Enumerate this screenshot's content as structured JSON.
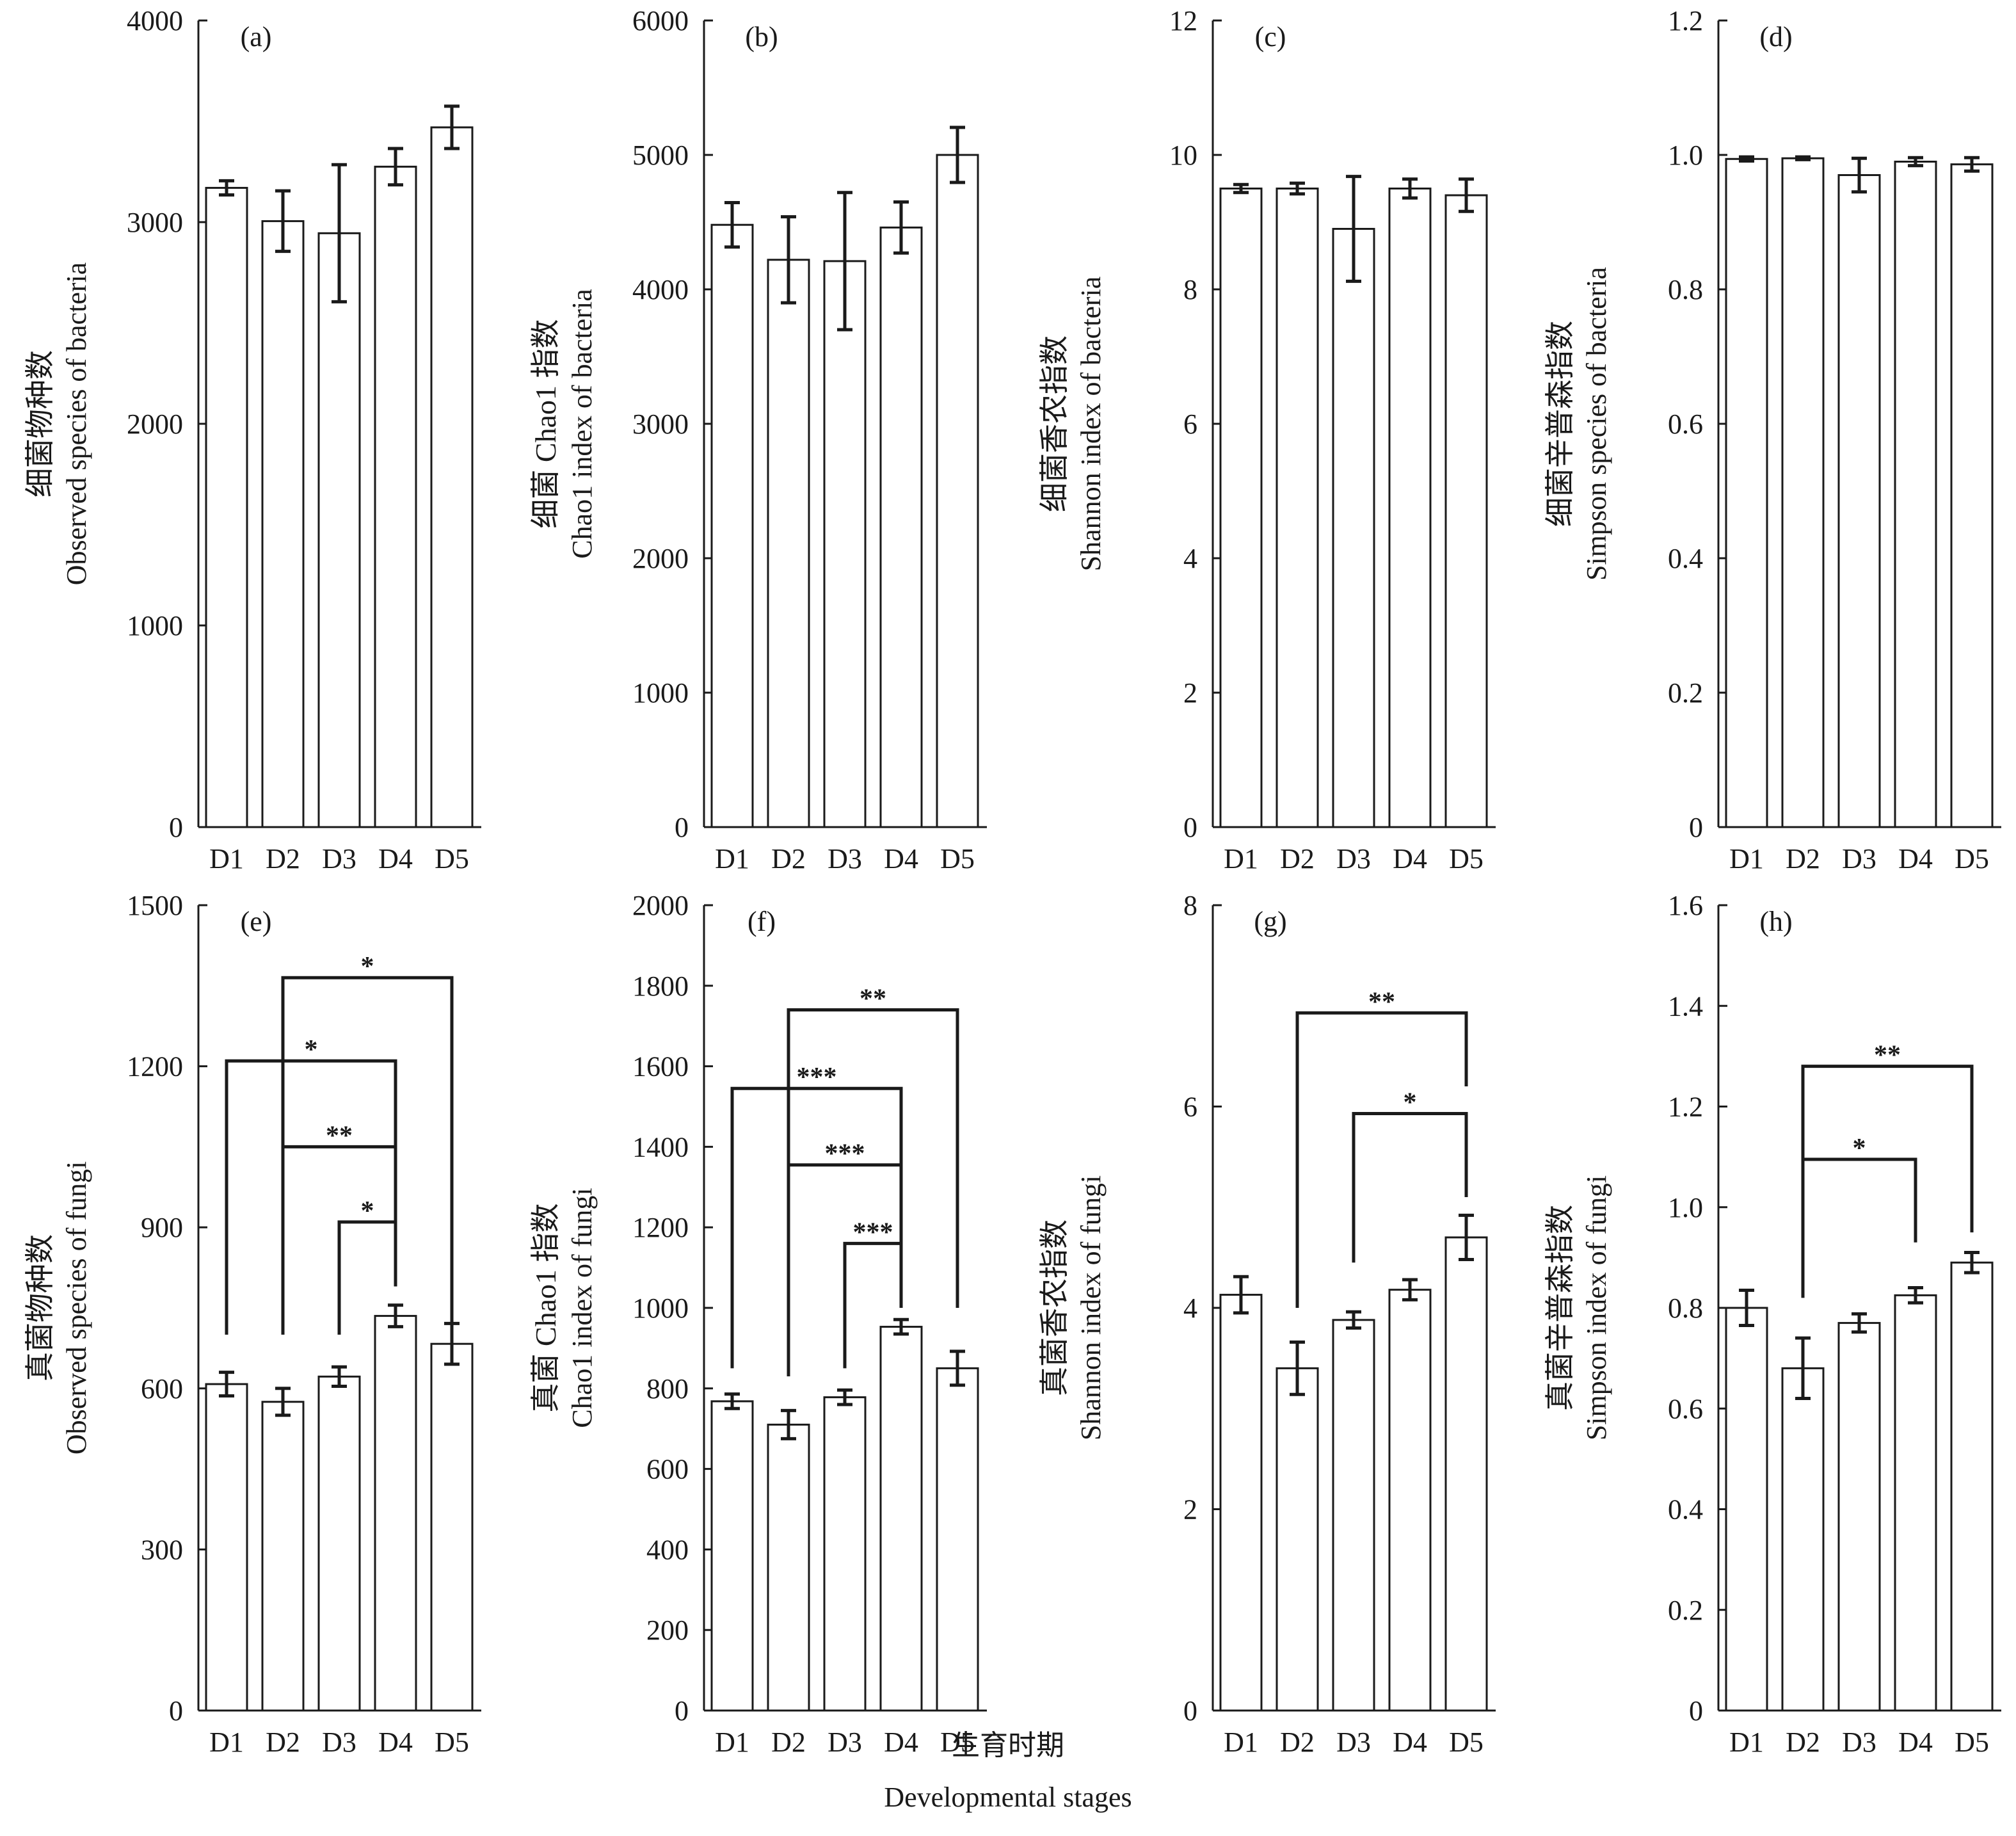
{
  "x_axis_title": {
    "cn": "生育时期",
    "en": "Developmental stages"
  },
  "chart_data": [
    {
      "type": "bar",
      "panel_label": "(a)",
      "ylabel_cn": "细菌物种数",
      "ylabel_en": "Observed species of bacteria",
      "categories": [
        "D1",
        "D2",
        "D3",
        "D4",
        "D5"
      ],
      "values": [
        3170,
        3005,
        2945,
        3275,
        3470
      ],
      "errors": [
        35,
        150,
        340,
        90,
        105
      ],
      "ylim": [
        0,
        4000
      ],
      "yticks": [
        "0",
        "1000",
        "2000",
        "3000",
        "4000"
      ],
      "significance": []
    },
    {
      "type": "bar",
      "panel_label": "(b)",
      "ylabel_cn": "细菌 Chao1 指数",
      "ylabel_en": "Chao1 index of bacteria",
      "categories": [
        "D1",
        "D2",
        "D3",
        "D4",
        "D5"
      ],
      "values": [
        4480,
        4220,
        4210,
        4460,
        5000
      ],
      "errors": [
        165,
        320,
        510,
        190,
        205
      ],
      "ylim": [
        0,
        6000
      ],
      "yticks": [
        "0",
        "1000",
        "2000",
        "3000",
        "4000",
        "5000",
        "6000"
      ],
      "significance": []
    },
    {
      "type": "bar",
      "panel_label": "(c)",
      "ylabel_cn": "细菌香农指数",
      "ylabel_en": "Shannon index of bacteria",
      "categories": [
        "D1",
        "D2",
        "D3",
        "D4",
        "D5"
      ],
      "values": [
        9.5,
        9.5,
        8.9,
        9.5,
        9.4
      ],
      "errors": [
        0.06,
        0.08,
        0.78,
        0.14,
        0.24
      ],
      "ylim": [
        0,
        12
      ],
      "yticks": [
        "0",
        "2",
        "4",
        "6",
        "8",
        "10",
        "12"
      ],
      "significance": []
    },
    {
      "type": "bar",
      "panel_label": "(d)",
      "ylabel_cn": "细菌辛普森指数",
      "ylabel_en": "Simpson species of bacteria",
      "categories": [
        "D1",
        "D2",
        "D3",
        "D4",
        "D5"
      ],
      "values": [
        0.994,
        0.995,
        0.97,
        0.99,
        0.986
      ],
      "errors": [
        0.003,
        0.002,
        0.025,
        0.006,
        0.01
      ],
      "ylim": [
        0,
        1.2
      ],
      "yticks": [
        "0",
        "0.2",
        "0.4",
        "0.6",
        "0.8",
        "1.0",
        "1.2"
      ],
      "significance": []
    },
    {
      "type": "bar",
      "panel_label": "(e)",
      "ylabel_cn": "真菌物种数",
      "ylabel_en": "Observed species of fungi",
      "categories": [
        "D1",
        "D2",
        "D3",
        "D4",
        "D5"
      ],
      "values": [
        608,
        575,
        622,
        735,
        683
      ],
      "errors": [
        22,
        25,
        18,
        20,
        38
      ],
      "ylim": [
        0,
        1500
      ],
      "yticks": [
        "0",
        "300",
        "600",
        "900",
        "1200",
        "1500"
      ],
      "significance": [
        {
          "from": 1,
          "to": 4,
          "level": 1365,
          "stars": "*",
          "start_a": 790,
          "start_b": 700
        },
        {
          "from": 0,
          "to": 3,
          "level": 1210,
          "stars": "*",
          "start_a": 700,
          "start_b": 790
        },
        {
          "from": 1,
          "to": 3,
          "level": 1050,
          "stars": "**",
          "start_a": 700,
          "start_b": 790
        },
        {
          "from": 2,
          "to": 3,
          "level": 910,
          "stars": "*",
          "start_a": 700,
          "start_b": 790
        }
      ]
    },
    {
      "type": "bar",
      "panel_label": "(f)",
      "ylabel_cn": "真菌 Chao1 指数",
      "ylabel_en": "Chao1 index of fungi",
      "categories": [
        "D1",
        "D2",
        "D3",
        "D4",
        "D5"
      ],
      "values": [
        768,
        710,
        778,
        953,
        850
      ],
      "errors": [
        18,
        35,
        18,
        18,
        42
      ],
      "ylim": [
        0,
        2000
      ],
      "yticks": [
        "0",
        "200",
        "400",
        "600",
        "800",
        "1000",
        "1200",
        "1400",
        "1600",
        "1800",
        "2000"
      ],
      "significance": [
        {
          "from": 1,
          "to": 4,
          "level": 1740,
          "stars": "**",
          "start_a": 830,
          "start_b": 1000
        },
        {
          "from": 0,
          "to": 3,
          "level": 1545,
          "stars": "***",
          "start_a": 850,
          "start_b": 1000
        },
        {
          "from": 1,
          "to": 3,
          "level": 1355,
          "stars": "***",
          "start_a": 830,
          "start_b": 1000
        },
        {
          "from": 2,
          "to": 3,
          "level": 1160,
          "stars": "***",
          "start_a": 850,
          "start_b": 1000
        }
      ]
    },
    {
      "type": "bar",
      "panel_label": "(g)",
      "ylabel_cn": "真菌香农指数",
      "ylabel_en": "Shannon index of fungi",
      "categories": [
        "D1",
        "D2",
        "D3",
        "D4",
        "D5"
      ],
      "values": [
        4.13,
        3.4,
        3.88,
        4.18,
        4.7
      ],
      "errors": [
        0.18,
        0.26,
        0.08,
        0.1,
        0.22
      ],
      "ylim": [
        0,
        8
      ],
      "yticks": [
        "0",
        "2",
        "4",
        "6",
        "8"
      ],
      "significance": [
        {
          "from": 1,
          "to": 4,
          "level": 6.93,
          "stars": "**",
          "start_a": 4.0,
          "start_b": 6.2
        },
        {
          "from": 2,
          "to": 4,
          "level": 5.93,
          "stars": "*",
          "start_a": 4.45,
          "start_b": 5.1
        }
      ]
    },
    {
      "type": "bar",
      "panel_label": "(h)",
      "ylabel_cn": "真菌辛普森指数",
      "ylabel_en": "Simpson index of fungi",
      "categories": [
        "D1",
        "D2",
        "D3",
        "D4",
        "D5"
      ],
      "values": [
        0.8,
        0.68,
        0.77,
        0.825,
        0.89
      ],
      "errors": [
        0.035,
        0.06,
        0.018,
        0.015,
        0.02
      ],
      "ylim": [
        0,
        1.6
      ],
      "yticks": [
        "0",
        "0.2",
        "0.4",
        "0.6",
        "0.8",
        "1.0",
        "1.2",
        "1.4",
        "1.6"
      ],
      "significance": [
        {
          "from": 1,
          "to": 4,
          "level": 1.28,
          "stars": "**",
          "start_a": 0.82,
          "start_b": 0.95
        },
        {
          "from": 1,
          "to": 3,
          "level": 1.095,
          "stars": "*",
          "start_a": 0.82,
          "start_b": 0.93
        }
      ]
    }
  ]
}
